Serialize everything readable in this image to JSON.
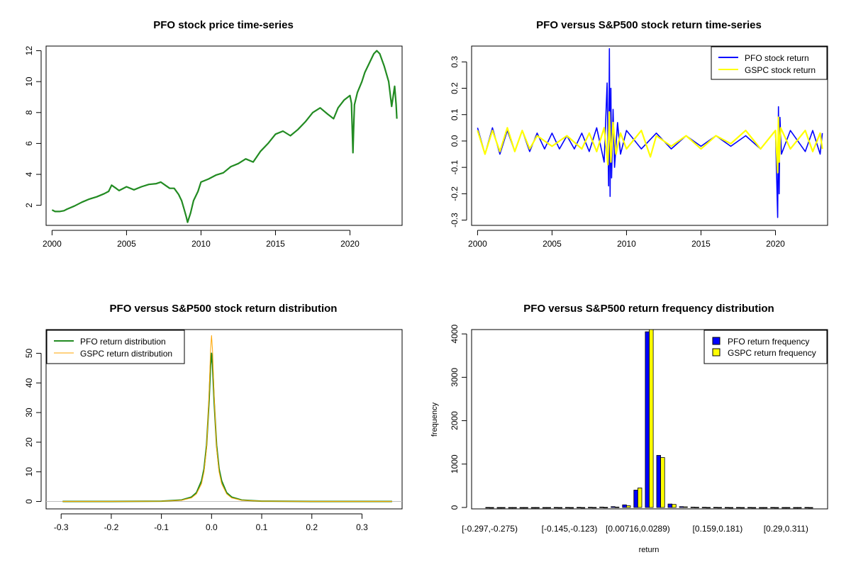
{
  "figure": {
    "colors": {
      "pfo": "#0000ff",
      "gspc": "#ffff00",
      "price": "#228b22",
      "density_gspc": "#ffa500"
    }
  },
  "chart_data": [
    {
      "id": "price",
      "type": "line",
      "title": "PFO stock price time-series",
      "xlabel": "",
      "ylabel": "",
      "xlim": [
        1999.6,
        2023.5
      ],
      "ylim": [
        0.7,
        12.3
      ],
      "x_ticks": [
        2000,
        2005,
        2010,
        2015,
        2020
      ],
      "x_tick_labels": [
        "2000",
        "2005",
        "2010",
        "2015",
        "2020"
      ],
      "y_ticks": [
        2,
        4,
        6,
        8,
        10,
        12
      ],
      "y_tick_labels": [
        "2",
        "4",
        "6",
        "8",
        "10",
        "12"
      ],
      "grid": false,
      "series": [
        {
          "color": "#228b22",
          "x": [
            2000.0,
            2000.2,
            2000.5,
            2000.8,
            2001.0,
            2001.5,
            2002.0,
            2002.5,
            2003.0,
            2003.5,
            2003.8,
            2004.0,
            2004.3,
            2004.5,
            2005.0,
            2005.5,
            2006.0,
            2006.5,
            2007.0,
            2007.3,
            2007.6,
            2007.9,
            2008.2,
            2008.5,
            2008.7,
            2008.85,
            2009.0,
            2009.1,
            2009.3,
            2009.5,
            2009.8,
            2010.0,
            2010.5,
            2011.0,
            2011.5,
            2012.0,
            2012.5,
            2013.0,
            2013.5,
            2014.0,
            2014.5,
            2015.0,
            2015.5,
            2016.0,
            2016.5,
            2017.0,
            2017.5,
            2018.0,
            2018.5,
            2018.9,
            2019.2,
            2019.6,
            2020.0,
            2020.1,
            2020.2,
            2020.25,
            2020.3,
            2020.5,
            2020.8,
            2021.0,
            2021.3,
            2021.6,
            2021.8,
            2022.0,
            2022.3,
            2022.6,
            2022.8,
            2023.0,
            2023.1,
            2023.15
          ],
          "y": [
            1.7,
            1.6,
            1.6,
            1.65,
            1.75,
            1.95,
            2.2,
            2.4,
            2.55,
            2.75,
            2.9,
            3.3,
            3.1,
            2.95,
            3.2,
            3.0,
            3.2,
            3.35,
            3.4,
            3.5,
            3.3,
            3.1,
            3.1,
            2.7,
            2.3,
            1.8,
            1.3,
            0.9,
            1.5,
            2.3,
            2.9,
            3.5,
            3.7,
            3.95,
            4.1,
            4.5,
            4.7,
            5.0,
            4.8,
            5.5,
            6.0,
            6.6,
            6.8,
            6.5,
            6.9,
            7.4,
            8.0,
            8.3,
            7.9,
            7.6,
            8.3,
            8.8,
            9.1,
            8.6,
            5.4,
            7.0,
            8.5,
            9.3,
            10.0,
            10.6,
            11.2,
            11.8,
            12.0,
            11.8,
            11.0,
            10.0,
            8.4,
            9.7,
            8.5,
            7.6
          ]
        }
      ]
    },
    {
      "id": "returns",
      "type": "line",
      "title": "PFO versus S&P500 stock return time-series",
      "xlabel": "",
      "ylabel": "",
      "xlim": [
        1999.6,
        2023.5
      ],
      "ylim": [
        -0.32,
        0.36
      ],
      "x_ticks": [
        2000,
        2005,
        2010,
        2015,
        2020
      ],
      "x_tick_labels": [
        "2000",
        "2005",
        "2010",
        "2015",
        "2020"
      ],
      "y_ticks": [
        -0.3,
        -0.2,
        -0.1,
        0.0,
        0.1,
        0.2,
        0.3
      ],
      "y_tick_labels": [
        "-0.3",
        "-0.2",
        "-0.1",
        "0.0",
        "0.1",
        "0.2",
        "0.3"
      ],
      "grid": false,
      "legend": "top-right",
      "series": [
        {
          "name": "PFO stock return",
          "color": "#0000ff",
          "x": [
            2000.0,
            2000.5,
            2001.0,
            2001.5,
            2002.0,
            2002.5,
            2003.0,
            2003.5,
            2004.0,
            2004.5,
            2005.0,
            2005.5,
            2006.0,
            2006.5,
            2007.0,
            2007.5,
            2008.0,
            2008.5,
            2008.7,
            2008.8,
            2008.85,
            2008.9,
            2008.95,
            2009.0,
            2009.1,
            2009.2,
            2009.4,
            2009.6,
            2010.0,
            2011.0,
            2012.0,
            2013.0,
            2014.0,
            2015.0,
            2016.0,
            2017.0,
            2018.0,
            2019.0,
            2020.0,
            2020.15,
            2020.2,
            2020.25,
            2020.3,
            2020.4,
            2021.0,
            2022.0,
            2022.5,
            2023.0,
            2023.15
          ],
          "y": [
            0.05,
            -0.05,
            0.05,
            -0.05,
            0.04,
            -0.04,
            0.04,
            -0.04,
            0.03,
            -0.03,
            0.03,
            -0.03,
            0.02,
            -0.03,
            0.03,
            -0.04,
            0.05,
            -0.08,
            0.22,
            -0.17,
            0.35,
            -0.21,
            0.2,
            -0.14,
            0.12,
            -0.1,
            0.07,
            -0.05,
            0.04,
            -0.03,
            0.03,
            -0.03,
            0.02,
            -0.02,
            0.02,
            -0.02,
            0.02,
            -0.03,
            0.04,
            -0.29,
            0.13,
            -0.2,
            0.09,
            -0.05,
            0.04,
            -0.04,
            0.04,
            -0.05,
            0.03
          ]
        },
        {
          "name": "GSPC stock return",
          "color": "#ffff00",
          "x": [
            2000.0,
            2000.5,
            2001.0,
            2001.5,
            2002.0,
            2002.5,
            2003.0,
            2003.5,
            2004.0,
            2005.0,
            2006.0,
            2007.0,
            2007.5,
            2008.0,
            2008.5,
            2008.75,
            2008.85,
            2008.95,
            2009.1,
            2009.3,
            2009.6,
            2010.0,
            2011.0,
            2011.6,
            2012.0,
            2013.0,
            2014.0,
            2015.0,
            2016.0,
            2017.0,
            2018.0,
            2019.0,
            2020.0,
            2020.15,
            2020.2,
            2020.25,
            2020.35,
            2021.0,
            2022.0,
            2022.5,
            2023.0,
            2023.15
          ],
          "y": [
            0.04,
            -0.05,
            0.04,
            -0.04,
            0.05,
            -0.04,
            0.04,
            -0.03,
            0.02,
            -0.02,
            0.02,
            -0.03,
            0.03,
            -0.04,
            0.05,
            -0.09,
            0.11,
            -0.08,
            0.07,
            -0.05,
            0.03,
            -0.03,
            0.04,
            -0.06,
            0.02,
            -0.02,
            0.02,
            -0.03,
            0.02,
            -0.01,
            0.04,
            -0.03,
            0.04,
            -0.12,
            0.09,
            -0.08,
            0.05,
            -0.03,
            0.04,
            -0.04,
            0.03,
            -0.03
          ]
        }
      ]
    },
    {
      "id": "density",
      "type": "line",
      "title": "PFO versus S&P500 stock return distribution",
      "xlabel": "",
      "ylabel": "",
      "xlim": [
        -0.33,
        0.38
      ],
      "ylim": [
        -2.5,
        58
      ],
      "x_ticks": [
        -0.3,
        -0.2,
        -0.1,
        0.0,
        0.1,
        0.2,
        0.3
      ],
      "x_tick_labels": [
        "-0.3",
        "-0.2",
        "-0.1",
        "0.0",
        "0.1",
        "0.2",
        "0.3"
      ],
      "y_ticks": [
        0,
        10,
        20,
        30,
        40,
        50
      ],
      "y_tick_labels": [
        "0",
        "10",
        "20",
        "30",
        "40",
        "50"
      ],
      "grid": false,
      "legend": "top-left",
      "series": [
        {
          "name": "PFO return distribution",
          "color": "#228b22",
          "x": [
            -0.297,
            -0.2,
            -0.1,
            -0.06,
            -0.04,
            -0.03,
            -0.02,
            -0.015,
            -0.01,
            -0.005,
            -0.002,
            0.0,
            0.002,
            0.005,
            0.01,
            0.015,
            0.02,
            0.03,
            0.04,
            0.06,
            0.1,
            0.2,
            0.36
          ],
          "y": [
            0.0,
            0.0,
            0.1,
            0.5,
            1.5,
            3.0,
            7.0,
            11.0,
            19.0,
            34.0,
            46.0,
            50.0,
            46.0,
            34.0,
            19.0,
            11.0,
            7.0,
            3.0,
            1.5,
            0.5,
            0.1,
            0.0,
            0.0
          ]
        },
        {
          "name": "GSPC return distribution",
          "color": "#ffa500",
          "x": [
            -0.297,
            -0.2,
            -0.1,
            -0.06,
            -0.04,
            -0.03,
            -0.02,
            -0.015,
            -0.01,
            -0.005,
            -0.002,
            0.0,
            0.002,
            0.005,
            0.01,
            0.015,
            0.02,
            0.03,
            0.04,
            0.06,
            0.1,
            0.2,
            0.36
          ],
          "y": [
            0.0,
            0.0,
            0.1,
            0.4,
            1.2,
            2.6,
            6.0,
            10.0,
            18.0,
            36.0,
            51.0,
            56.0,
            51.0,
            36.0,
            18.0,
            10.0,
            6.0,
            2.6,
            1.2,
            0.4,
            0.1,
            0.0,
            0.0
          ]
        }
      ]
    },
    {
      "id": "frequency",
      "type": "bar",
      "title": "PFO versus S&P500 return frequency distribution",
      "xlabel": "return",
      "ylabel": "frequency",
      "ylim": [
        0,
        4100
      ],
      "y_ticks": [
        0,
        1000,
        2000,
        3000,
        4000
      ],
      "y_tick_labels": [
        "0",
        "1000",
        "2000",
        "3000",
        "4000"
      ],
      "grid": false,
      "legend": "top-right",
      "categories": [
        "[-0.297,-0.275)",
        "",
        "",
        "",
        "",
        "",
        "",
        "[-0.145,-0.123)",
        "",
        "",
        "",
        "",
        "",
        "[0.00716,0.0289)",
        "",
        "",
        "",
        "",
        "",
        "",
        "[0.159,0.181)",
        "",
        "",
        "",
        "",
        "",
        "[0.29,0.311)",
        "",
        ""
      ],
      "series": [
        {
          "name": "PFO return frequency",
          "color": "#0000ff",
          "values": [
            1,
            0,
            0,
            0,
            0,
            0,
            1,
            2,
            3,
            5,
            10,
            20,
            60,
            400,
            4050,
            1200,
            80,
            20,
            8,
            5,
            3,
            2,
            1,
            1,
            0,
            1,
            0,
            0,
            1
          ]
        },
        {
          "name": "GSPC return frequency",
          "color": "#ffff00",
          "values": [
            0,
            0,
            0,
            0,
            0,
            0,
            0,
            0,
            0,
            1,
            3,
            10,
            40,
            450,
            4100,
            1150,
            70,
            15,
            5,
            2,
            1,
            0,
            0,
            0,
            0,
            0,
            0,
            0,
            0
          ]
        }
      ]
    }
  ]
}
